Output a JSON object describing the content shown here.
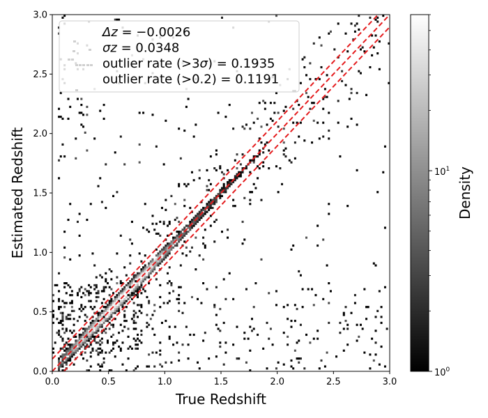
{
  "chart_data": {
    "type": "heatmap",
    "xlabel": "True Redshift",
    "ylabel": "Estimated Redshift",
    "xlim": [
      0,
      3.0
    ],
    "ylim": [
      0,
      3.0
    ],
    "xticks": [
      "0.0",
      "0.5",
      "1.0",
      "1.5",
      "2.0",
      "2.5",
      "3.0"
    ],
    "yticks": [
      "0.0",
      "0.5",
      "1.0",
      "1.5",
      "2.0",
      "2.5",
      "3.0"
    ],
    "colorbar": {
      "label": "Density",
      "scale": "log",
      "range": [
        1,
        60
      ],
      "ticks": [
        {
          "base": "10",
          "exp": "0",
          "value": 1
        },
        {
          "base": "10",
          "exp": "1",
          "value": 10
        }
      ],
      "colormap": "gray"
    },
    "bins": 180,
    "reference_lines": [
      {
        "style": "dashed",
        "color": "#e41a1c",
        "slope": 1,
        "intercept": 0
      },
      {
        "style": "dashed",
        "color": "#e41a1c",
        "slope": 1,
        "intercept": 0.104
      },
      {
        "style": "dashed",
        "color": "#e41a1c",
        "slope": 1,
        "intercept": -0.104
      }
    ],
    "legend": {
      "position": "top-left",
      "lines": [
        {
          "sym": "Δz",
          "value": " = −0.0026"
        },
        {
          "sym": "σz",
          "value": " = 0.0348"
        },
        {
          "text": "outlier rate (>3",
          "sym": "σ",
          "value": ") = 0.1935"
        },
        {
          "text": "outlier rate (>0.2) = 0.1191"
        }
      ]
    },
    "density_model": {
      "main_ridge": {
        "z_range": [
          0.05,
          1.45
        ],
        "peak_z": 0.6,
        "width": 0.035
      },
      "outlier_fraction": 0.19
    }
  }
}
